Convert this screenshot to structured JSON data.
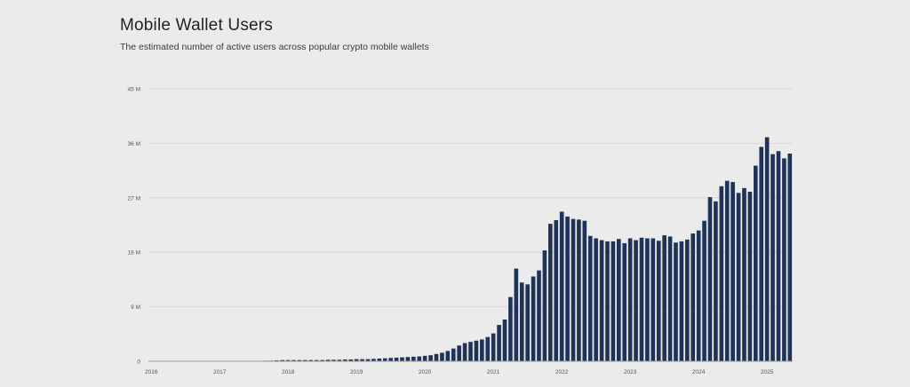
{
  "header": {
    "title": "Mobile Wallet Users",
    "subtitle": "The estimated number of active users across popular crypto mobile wallets"
  },
  "colors": {
    "bar": "#1e3358",
    "grid": "#d4d4d4",
    "axis": "#9a9a9a"
  },
  "chart_data": {
    "type": "bar",
    "title": "Mobile Wallet Users",
    "subtitle": "The estimated number of active users across popular crypto mobile wallets",
    "xlabel": "",
    "ylabel": "",
    "ylim": [
      0,
      45
    ],
    "y_unit": "M",
    "y_ticks": [
      0,
      9,
      18,
      27,
      36,
      45
    ],
    "y_tick_labels": [
      "0",
      "9 M",
      "18 M",
      "27 M",
      "36 M",
      "45 M"
    ],
    "x_tick_labels": [
      "2016",
      "2017",
      "2018",
      "2019",
      "2020",
      "2021",
      "2022",
      "2023",
      "2024",
      "2025"
    ],
    "grid": true,
    "legend": "none",
    "categories": [
      "2016-01",
      "2016-02",
      "2016-03",
      "2016-04",
      "2016-05",
      "2016-06",
      "2016-07",
      "2016-08",
      "2016-09",
      "2016-10",
      "2016-11",
      "2016-12",
      "2017-01",
      "2017-02",
      "2017-03",
      "2017-04",
      "2017-05",
      "2017-06",
      "2017-07",
      "2017-08",
      "2017-09",
      "2017-10",
      "2017-11",
      "2017-12",
      "2018-01",
      "2018-02",
      "2018-03",
      "2018-04",
      "2018-05",
      "2018-06",
      "2018-07",
      "2018-08",
      "2018-09",
      "2018-10",
      "2018-11",
      "2018-12",
      "2019-01",
      "2019-02",
      "2019-03",
      "2019-04",
      "2019-05",
      "2019-06",
      "2019-07",
      "2019-08",
      "2019-09",
      "2019-10",
      "2019-11",
      "2019-12",
      "2020-01",
      "2020-02",
      "2020-03",
      "2020-04",
      "2020-05",
      "2020-06",
      "2020-07",
      "2020-08",
      "2020-09",
      "2020-10",
      "2020-11",
      "2020-12",
      "2021-01",
      "2021-02",
      "2021-03",
      "2021-04",
      "2021-05",
      "2021-06",
      "2021-07",
      "2021-08",
      "2021-09",
      "2021-10",
      "2021-11",
      "2021-12",
      "2022-01",
      "2022-02",
      "2022-03",
      "2022-04",
      "2022-05",
      "2022-06",
      "2022-07",
      "2022-08",
      "2022-09",
      "2022-10",
      "2022-11",
      "2022-12",
      "2023-01",
      "2023-02",
      "2023-03",
      "2023-04",
      "2023-05",
      "2023-06",
      "2023-07",
      "2023-08",
      "2023-09",
      "2023-10",
      "2023-11",
      "2023-12",
      "2024-01",
      "2024-02",
      "2024-03",
      "2024-04",
      "2024-05",
      "2024-06",
      "2024-07",
      "2024-08",
      "2024-09",
      "2024-10",
      "2024-11",
      "2024-12",
      "2025-01",
      "2025-02",
      "2025-03",
      "2025-04",
      "2025-05"
    ],
    "values": [
      0.05,
      0.05,
      0.05,
      0.05,
      0.05,
      0.05,
      0.05,
      0.05,
      0.05,
      0.05,
      0.05,
      0.05,
      0.05,
      0.05,
      0.05,
      0.05,
      0.05,
      0.05,
      0.05,
      0.05,
      0.1,
      0.1,
      0.15,
      0.2,
      0.2,
      0.2,
      0.2,
      0.2,
      0.2,
      0.2,
      0.2,
      0.25,
      0.25,
      0.25,
      0.3,
      0.3,
      0.35,
      0.35,
      0.35,
      0.4,
      0.45,
      0.5,
      0.55,
      0.6,
      0.65,
      0.7,
      0.75,
      0.8,
      0.9,
      1.0,
      1.2,
      1.4,
      1.7,
      2.1,
      2.6,
      3.0,
      3.2,
      3.4,
      3.6,
      4.0,
      4.6,
      6.0,
      6.9,
      10.6,
      15.3,
      13.0,
      12.7,
      14.0,
      15.0,
      18.3,
      22.7,
      23.3,
      24.7,
      23.9,
      23.5,
      23.4,
      23.2,
      20.7,
      20.3,
      20.0,
      19.8,
      19.8,
      20.2,
      19.5,
      20.3,
      20.0,
      20.4,
      20.3,
      20.3,
      19.9,
      20.8,
      20.6,
      19.6,
      19.8,
      20.1,
      21.1,
      21.6,
      23.2,
      27.1,
      26.4,
      28.9,
      29.8,
      29.6,
      27.8,
      28.6,
      28.0,
      32.3,
      35.4,
      37.0,
      34.2,
      34.7,
      33.5,
      34.3
    ]
  }
}
